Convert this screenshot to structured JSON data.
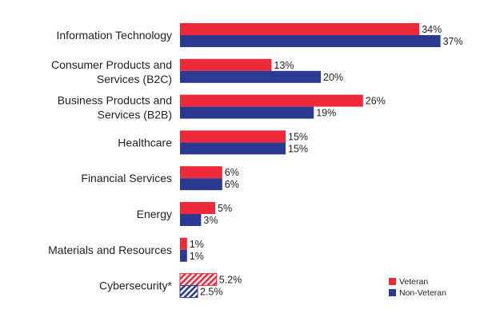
{
  "colors": {
    "veteran": "#ee2a3a",
    "non_veteran": "#2b3990"
  },
  "chart_data": {
    "type": "bar",
    "orientation": "horizontal",
    "title": "",
    "xlabel": "",
    "ylabel": "",
    "xlim": [
      0,
      37
    ],
    "categories": [
      [
        "Information Technology"
      ],
      [
        "Consumer Products and",
        "Services (B2C)"
      ],
      [
        "Business Products and",
        "Services (B2B)"
      ],
      [
        "Healthcare"
      ],
      [
        "Financial Services"
      ],
      [
        "Energy"
      ],
      [
        "Materials and Resources"
      ],
      [
        "Cybersecurity*"
      ]
    ],
    "series": [
      {
        "name": "Veteran",
        "values": [
          34,
          13,
          26,
          15,
          6,
          5,
          1,
          5.2
        ],
        "labels": [
          "34%",
          "13%",
          "26%",
          "15%",
          "6%",
          "5%",
          "1%",
          "5.2%"
        ]
      },
      {
        "name": "Non-Veteran",
        "values": [
          37,
          20,
          19,
          15,
          6,
          3,
          1,
          2.5
        ],
        "labels": [
          "37%",
          "20%",
          "19%",
          "15%",
          "6%",
          "3%",
          "1%",
          "2.5%"
        ]
      }
    ],
    "hatched_categories": [
      7
    ],
    "legend": {
      "position": "bottom-right",
      "entries": [
        "Veteran",
        "Non-Veteran"
      ]
    }
  }
}
